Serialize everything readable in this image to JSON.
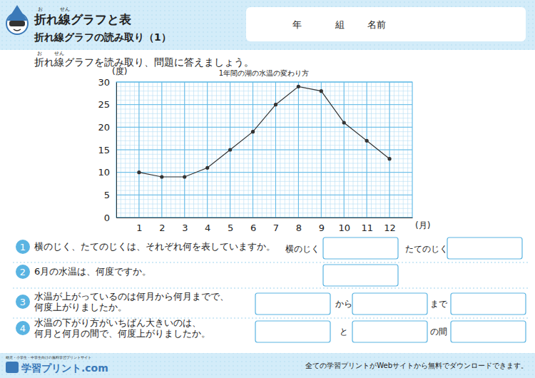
{
  "chart_data": {
    "type": "line",
    "title": "1年間の湖の水温の変わり方",
    "x": [
      1,
      2,
      3,
      4,
      5,
      6,
      7,
      8,
      9,
      10,
      11,
      12
    ],
    "values": [
      10,
      9,
      9,
      11,
      15,
      19,
      25,
      29,
      28,
      21,
      17,
      13
    ],
    "xlim": [
      0,
      13
    ],
    "xticks": [
      1,
      2,
      3,
      4,
      5,
      6,
      7,
      8,
      9,
      10,
      11,
      12
    ],
    "ylim": [
      0,
      30
    ],
    "yticks": [
      0,
      5,
      10,
      15,
      20,
      25,
      30
    ],
    "x_label": "(月)",
    "y_label": "(度)",
    "grid": true,
    "color": "#333333",
    "marker": "circle"
  },
  "page": {
    "header": {
      "title": "折れ線グラフと表",
      "title_ruby": [
        "お",
        "せん"
      ],
      "subtitle": "折れ線グラフの読み取り（1）",
      "name_fields": [
        "年",
        "組",
        "名前"
      ]
    },
    "instruction": {
      "text": "折れ線グラフを読み取り、問題に答えましょう。",
      "ruby": [
        "お",
        "せん"
      ]
    },
    "questions": [
      {
        "number": 1,
        "lines": [
          "横のじく、たてのじくは、それぞれ何を表していますか。"
        ],
        "answer_labels": [
          "横のじく",
          "たてのじく"
        ]
      },
      {
        "number": 2,
        "lines": [
          "6月の水温は、何度ですか。"
        ],
        "answer_labels": []
      },
      {
        "number": 3,
        "lines": [
          "水温が上がっているのは何月から何月までで、",
          "何度上がりましたか。"
        ],
        "answer_labels": [
          "から",
          "まで"
        ]
      },
      {
        "number": 4,
        "lines": [
          "水温の下がり方がいちばん大きいのは、",
          "何月と何月の間で、何度上がりましたか。"
        ],
        "answer_labels": [
          "と",
          "の間"
        ]
      }
    ],
    "footer": {
      "note": "全ての学習プリントがWebサイトから無料でダウンロードできます。",
      "logo": "学習プリント.com",
      "tagline": "幼児・小学生・中学生向けの無料学習プリントサイト"
    }
  }
}
